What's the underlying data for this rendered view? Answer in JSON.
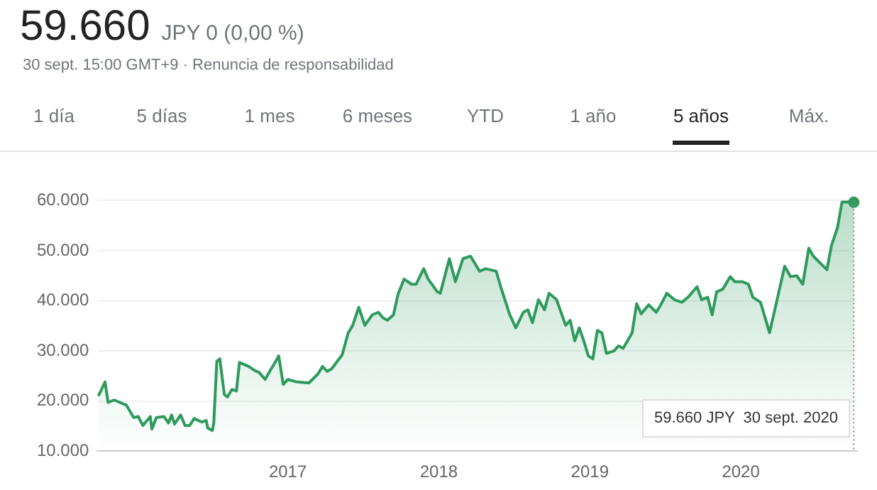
{
  "chart_data": {
    "type": "area",
    "title": "59.660",
    "subtitle": "JPY 0 (0,00 %)",
    "annotations": [
      "30 sept. 15:00 GMT+9 · Renuncia de responsabilidad",
      "1 día",
      "5 días",
      "1 mes",
      "6 meses",
      "YTD",
      "1 año",
      "5 años",
      "Máx.",
      "59.660 JPY  30 sept. 2020"
    ],
    "ref_lines": [
      {
        "axis": "x",
        "value": 2020.748,
        "color": "#888888",
        "line_style": "dotted"
      }
    ],
    "x": [
      2015.746,
      2015.79,
      2015.81,
      2015.85,
      2015.93,
      2015.98,
      2016.01,
      2016.04,
      2016.09,
      2016.1,
      2016.13,
      2016.18,
      2016.21,
      2016.23,
      2016.25,
      2016.29,
      2016.32,
      2016.35,
      2016.38,
      2016.43,
      2016.46,
      2016.47,
      2016.5,
      2016.51,
      2016.53,
      2016.55,
      2016.58,
      2016.6,
      2016.63,
      2016.66,
      2016.68,
      2016.74,
      2016.78,
      2016.81,
      2016.85,
      2016.88,
      2016.92,
      2016.94,
      2016.97,
      2017.0,
      2017.06,
      2017.14,
      2017.2,
      2017.23,
      2017.26,
      2017.29,
      2017.36,
      2017.4,
      2017.43,
      2017.47,
      2017.51,
      2017.56,
      2017.6,
      2017.63,
      2017.66,
      2017.7,
      2017.73,
      2017.77,
      2017.82,
      2017.85,
      2017.9,
      2017.93,
      2017.99,
      2018.01,
      2018.07,
      2018.11,
      2018.16,
      2018.21,
      2018.27,
      2018.31,
      2018.38,
      2018.41,
      2018.47,
      2018.51,
      2018.56,
      2018.59,
      2018.62,
      2018.66,
      2018.7,
      2018.73,
      2018.78,
      2018.84,
      2018.87,
      2018.9,
      2018.93,
      2018.96,
      2018.99,
      2019.02,
      2019.05,
      2019.08,
      2019.11,
      2019.16,
      2019.19,
      2019.22,
      2019.25,
      2019.28,
      2019.31,
      2019.34,
      2019.39,
      2019.44,
      2019.47,
      2019.51,
      2019.56,
      2019.61,
      2019.65,
      2019.71,
      2019.74,
      2019.78,
      2019.81,
      2019.84,
      2019.88,
      2019.93,
      2019.96,
      2020.01,
      2020.05,
      2020.08,
      2020.13,
      2020.15,
      2020.19,
      2020.24,
      2020.29,
      2020.33,
      2020.37,
      2020.41,
      2020.45,
      2020.48,
      2020.53,
      2020.57,
      2020.6,
      2020.64,
      2020.67,
      2020.71,
      2020.748
    ],
    "series": [
      {
        "color": "#2e9a5c",
        "values": [
          21000,
          23800,
          19700,
          20200,
          19200,
          16700,
          16900,
          15100,
          16900,
          14400,
          16700,
          16900,
          15600,
          17200,
          15400,
          17200,
          15100,
          15100,
          16500,
          15800,
          16100,
          14600,
          14100,
          15600,
          27900,
          28400,
          21300,
          20800,
          22300,
          22000,
          27700,
          26900,
          26100,
          25700,
          24300,
          25900,
          27900,
          29000,
          23300,
          24300,
          23800,
          23600,
          25400,
          26900,
          25900,
          26400,
          29200,
          33600,
          35100,
          38700,
          35100,
          37200,
          37700,
          36600,
          36100,
          37200,
          41300,
          44300,
          43300,
          43300,
          46400,
          44300,
          41800,
          41500,
          48400,
          43800,
          48400,
          48900,
          45900,
          46400,
          45900,
          42800,
          37200,
          34600,
          37700,
          38200,
          35600,
          40200,
          38200,
          41500,
          40200,
          35100,
          36100,
          32000,
          34600,
          32000,
          29000,
          28400,
          34100,
          33600,
          29500,
          30000,
          31000,
          30500,
          32000,
          33600,
          39400,
          37400,
          39200,
          37700,
          39200,
          41500,
          40200,
          39700,
          40700,
          42800,
          40200,
          40700,
          37200,
          41800,
          42300,
          44800,
          43800,
          43800,
          43300,
          40700,
          39700,
          37700,
          33600,
          40200,
          46900,
          44800,
          45000,
          43300,
          50500,
          48900,
          47400,
          46200,
          51000,
          54600,
          59700,
          59700,
          59660
        ]
      }
    ],
    "xlim": [
      2015.74,
      2020.77
    ],
    "xticks": [
      2017,
      2018,
      2019,
      2020
    ],
    "ylim": [
      10000,
      60000
    ],
    "yticks": [
      {
        "value": 10000,
        "label": "10.000"
      },
      {
        "value": 20000,
        "label": "20.000"
      },
      {
        "value": 30000,
        "label": "30.000"
      },
      {
        "value": 40000,
        "label": "40.000"
      },
      {
        "value": 50000,
        "label": "50.000"
      },
      {
        "value": 60000,
        "label": "60.000"
      }
    ],
    "grid": "y",
    "legend": false
  }
}
